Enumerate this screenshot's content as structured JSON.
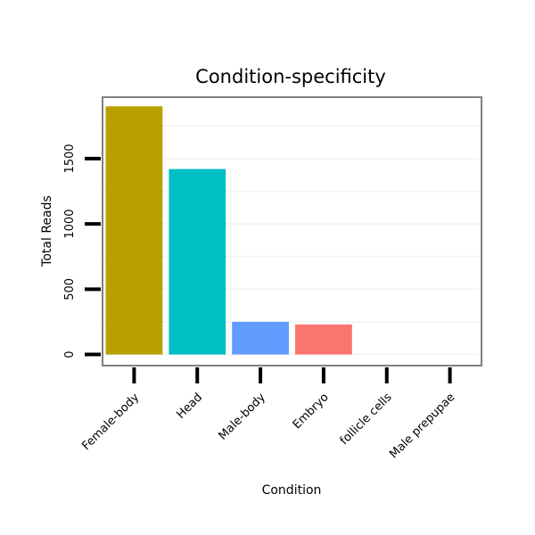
{
  "chart_data": {
    "type": "bar",
    "title": "Condition-specificity",
    "xlabel": "Condition",
    "ylabel": "Total Reads",
    "categories": [
      "Female-body",
      "Head",
      "Male-body",
      "Embryo",
      "follicle cells",
      "Male prepupae"
    ],
    "values": [
      1900,
      1420,
      250,
      230,
      0,
      0
    ],
    "colors": [
      "#B8A000",
      "#00BFC4",
      "#619CFF",
      "#F8766D",
      "#000000",
      "#000000"
    ],
    "yticks": [
      0,
      500,
      1000,
      1500
    ],
    "ylim": [
      -85,
      1970
    ],
    "grid": true
  }
}
